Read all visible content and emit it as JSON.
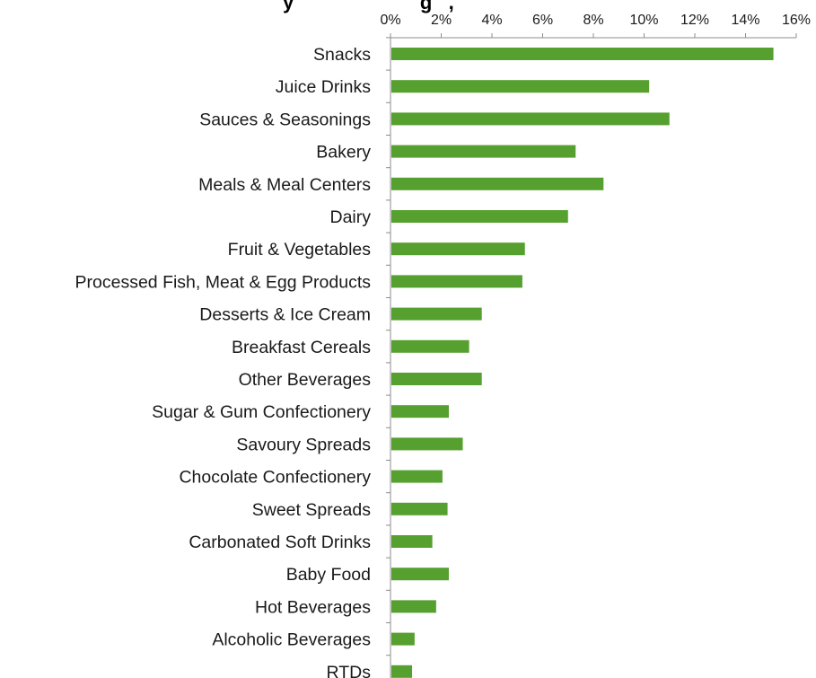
{
  "chart_data": {
    "type": "bar",
    "orientation": "horizontal",
    "title": "",
    "title_visible_fragment": "y                       g   ,",
    "xlabel": "",
    "ylabel": "",
    "xlim": [
      0,
      16
    ],
    "x_ticks": [
      0,
      2,
      4,
      6,
      8,
      10,
      12,
      14,
      16
    ],
    "x_tick_labels": [
      "0%",
      "2%",
      "4%",
      "6%",
      "8%",
      "10%",
      "12%",
      "14%",
      "16%"
    ],
    "x_axis_position": "top",
    "grid": false,
    "legend": "none",
    "bar_color": "#55a02e",
    "categories": [
      "Snacks",
      "Juice Drinks",
      "Sauces & Seasonings",
      "Bakery",
      "Meals &  Meal Centers",
      "Dairy",
      "Fruit &  Vegetables",
      "Processed Fish, Meat & Egg Products",
      "Desserts &  Ice Cream",
      "Breakfast Cereals",
      "Other Beverages",
      "Sugar & Gum Confectionery",
      "Savoury Spreads",
      "Chocolate Confectionery",
      "Sweet Spreads",
      "Carbonated Soft Drinks",
      "Baby Food",
      "Hot Beverages",
      "Alcoholic Beverages",
      "RTDs"
    ],
    "values": [
      15.1,
      10.2,
      11.0,
      7.3,
      8.4,
      7.0,
      5.3,
      5.2,
      3.6,
      3.1,
      3.6,
      2.3,
      2.85,
      2.05,
      2.25,
      1.65,
      2.3,
      1.8,
      0.95,
      0.85
    ]
  }
}
